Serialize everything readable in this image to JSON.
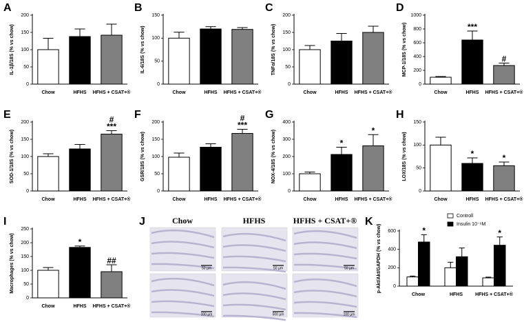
{
  "chart_data": [
    {
      "type": "bar",
      "panel": "A",
      "ylabel": "IL-1β/18S (% vs chow)",
      "categories": [
        "Chow",
        "HFHS",
        "HFHS + CSAT+®"
      ],
      "series": [
        {
          "color": [
            "#ffffff",
            "#000000",
            "#808080"
          ],
          "values": [
            100,
            138,
            142
          ],
          "errors": [
            33,
            22,
            32
          ]
        }
      ],
      "annotations": [
        null,
        null,
        null
      ],
      "ylim": [
        0,
        200
      ],
      "yticks": [
        0,
        50,
        100,
        150,
        200
      ]
    },
    {
      "type": "bar",
      "panel": "B",
      "ylabel": "IL-6/18S (% vs chow)",
      "categories": [
        "Chow",
        "HFHS",
        "HFHS + CSAT+®"
      ],
      "series": [
        {
          "color": [
            "#ffffff",
            "#000000",
            "#808080"
          ],
          "values": [
            100,
            120,
            119
          ],
          "errors": [
            13,
            5,
            4
          ]
        }
      ],
      "annotations": [
        null,
        null,
        null
      ],
      "ylim": [
        0,
        150
      ],
      "yticks": [
        0,
        50,
        100,
        150
      ]
    },
    {
      "type": "bar",
      "panel": "C",
      "ylabel": "TNFα/18S (% vs chow)",
      "categories": [
        "Chow",
        "HFHS",
        "HFHS + CSAT+®"
      ],
      "series": [
        {
          "color": [
            "#ffffff",
            "#000000",
            "#808080"
          ],
          "values": [
            100,
            125,
            150
          ],
          "errors": [
            12,
            22,
            18
          ]
        }
      ],
      "annotations": [
        null,
        null,
        null
      ],
      "ylim": [
        0,
        200
      ],
      "yticks": [
        0,
        50,
        100,
        150,
        200
      ]
    },
    {
      "type": "bar",
      "panel": "D",
      "ylabel": "MCP-1/18S (% vs chow)",
      "categories": [
        "Chow",
        "HFHS",
        "HFHS + CSAT+®"
      ],
      "series": [
        {
          "color": [
            "#ffffff",
            "#000000",
            "#808080"
          ],
          "values": [
            100,
            640,
            270
          ],
          "errors": [
            10,
            130,
            35
          ]
        }
      ],
      "annotations": [
        null,
        [
          "***"
        ],
        [
          "#"
        ]
      ],
      "ylim": [
        0,
        1000
      ],
      "yticks": [
        0,
        200,
        400,
        600,
        800,
        1000
      ]
    },
    {
      "type": "bar",
      "panel": "E",
      "ylabel": "SOD-1/18S (% vs chow)",
      "categories": [
        "Chow",
        "HFHS",
        "HFHS + CSAT+®"
      ],
      "series": [
        {
          "color": [
            "#ffffff",
            "#000000",
            "#808080"
          ],
          "values": [
            100,
            122,
            165
          ],
          "errors": [
            8,
            13,
            10
          ]
        }
      ],
      "annotations": [
        null,
        null,
        [
          "#",
          "***"
        ]
      ],
      "ylim": [
        0,
        200
      ],
      "yticks": [
        0,
        50,
        100,
        150,
        200
      ]
    },
    {
      "type": "bar",
      "panel": "F",
      "ylabel": "GSR/18S (% vs chow)",
      "categories": [
        "Chow",
        "HFHS",
        "HFHS + CSAT+®"
      ],
      "series": [
        {
          "color": [
            "#ffffff",
            "#000000",
            "#808080"
          ],
          "values": [
            98,
            127,
            167
          ],
          "errors": [
            12,
            10,
            12
          ]
        }
      ],
      "annotations": [
        null,
        null,
        [
          "#",
          "***"
        ]
      ],
      "ylim": [
        0,
        200
      ],
      "yticks": [
        0,
        50,
        100,
        150,
        200
      ]
    },
    {
      "type": "bar",
      "panel": "G",
      "ylabel": "NOX-4/18S (% vs chow)",
      "categories": [
        "Chow",
        "HFHS",
        "HFHS + CSAT+®"
      ],
      "series": [
        {
          "color": [
            "#ffffff",
            "#000000",
            "#808080"
          ],
          "values": [
            100,
            212,
            262
          ],
          "errors": [
            10,
            42,
            65
          ]
        }
      ],
      "annotations": [
        null,
        [
          "*"
        ],
        [
          "*"
        ]
      ],
      "ylim": [
        0,
        400
      ],
      "yticks": [
        0,
        100,
        200,
        300,
        400
      ]
    },
    {
      "type": "bar",
      "panel": "H",
      "ylabel": "LOX/18S (% vs chow)",
      "categories": [
        "Chow",
        "HFHS",
        "HFHS + CSAT+®"
      ],
      "series": [
        {
          "color": [
            "#ffffff",
            "#000000",
            "#808080"
          ],
          "values": [
            100,
            60,
            55
          ],
          "errors": [
            17,
            12,
            8
          ]
        }
      ],
      "annotations": [
        null,
        [
          "*"
        ],
        [
          "*"
        ]
      ],
      "ylim": [
        0,
        150
      ],
      "yticks": [
        0,
        50,
        100,
        150
      ]
    },
    {
      "type": "bar",
      "panel": "I",
      "ylabel": "Macrophages (% vs chow)",
      "categories": [
        "Chow",
        "HFHS",
        "HFHS + CSAT+®"
      ],
      "series": [
        {
          "color": [
            "#ffffff",
            "#000000",
            "#808080"
          ],
          "values": [
            100,
            183,
            95
          ],
          "errors": [
            10,
            5,
            25
          ]
        }
      ],
      "annotations": [
        null,
        [
          "*"
        ],
        [
          "##"
        ]
      ],
      "ylim": [
        0,
        250
      ],
      "yticks": [
        0,
        50,
        100,
        150,
        200,
        250
      ]
    },
    {
      "type": "bar",
      "panel": "K",
      "ylabel": "p-Akt/Akt/GAPDH (% vs chow)",
      "categories": [
        "Chow",
        "HFHS",
        "HFHS + CSAT+®"
      ],
      "series": [
        {
          "name": "Controll",
          "color": "#ffffff",
          "values": [
            100,
            200,
            90
          ],
          "errors": [
            10,
            60,
            8
          ],
          "annotations": [
            null,
            null,
            null
          ]
        },
        {
          "name": "Insulin 10⁻⁶M",
          "color": "#000000",
          "values": [
            480,
            320,
            445
          ],
          "errors": [
            80,
            95,
            90
          ],
          "annotations": [
            [
              "*"
            ],
            null,
            [
              "*"
            ]
          ]
        }
      ],
      "ylim": [
        0,
        600
      ],
      "yticks": [
        0,
        200,
        400,
        600
      ]
    }
  ],
  "micrographs": {
    "panel": "J",
    "columns": [
      "Chow",
      "HFHS",
      "HFHS + CSAT+®"
    ],
    "scale_labels": [
      [
        "50 µm",
        "50 µm",
        "50 µm"
      ],
      [
        "100 µm",
        "500 µm",
        "100 µm"
      ]
    ]
  }
}
